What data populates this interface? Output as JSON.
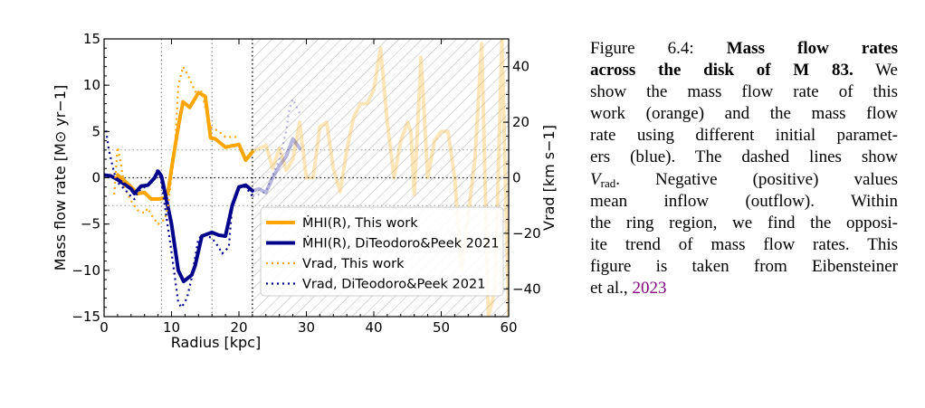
{
  "chart_data": {
    "type": "line",
    "xlabel": "Radius [kpc]",
    "ylabel": "Mass flow rate [M⊙ yr−1]",
    "ylabel_right": "Vrad [km s−1]",
    "xlim": [
      0,
      60
    ],
    "ylim": [
      -15,
      15
    ],
    "ylim_right": [
      -50,
      50
    ],
    "xticks": [
      "0",
      "10",
      "20",
      "30",
      "40",
      "50",
      "60"
    ],
    "yticks": [
      "−15",
      "−10",
      "−5",
      "0",
      "5",
      "10",
      "15"
    ],
    "yticks_right": [
      "−40",
      "−20",
      "0",
      "20",
      "40"
    ],
    "reference_lines": {
      "vertical_dotted_kpc": [
        8.5,
        16,
        22
      ],
      "horizontal_dotted_vrad": [
        -10,
        0,
        10
      ]
    },
    "hatched_region_kpc": [
      22,
      60
    ],
    "legend_placement": "lower-right",
    "colors": {
      "this_work": "#FFA500",
      "diteodoro": "#00008B"
    },
    "series": [
      {
        "name": "Ṁ_HI(R), This work",
        "axis": "left",
        "style": "solid",
        "color": "#FFA500",
        "x": [
          2,
          3,
          4,
          5,
          6,
          7,
          8,
          9,
          9.5,
          10,
          11,
          11.7,
          12.7,
          14,
          15,
          15.8,
          16.5,
          18,
          20,
          21,
          22,
          24,
          25,
          26,
          27,
          28,
          29,
          30,
          31,
          32,
          33,
          34,
          35,
          36,
          37,
          38,
          39,
          40,
          41,
          42,
          43,
          44,
          45,
          45.5,
          46,
          47,
          48,
          49,
          50,
          51,
          52,
          53,
          54,
          55,
          56,
          57,
          58,
          59,
          60
        ],
        "y": [
          0.3,
          -0.3,
          -1,
          -1.7,
          -1.6,
          -2.3,
          -2.3,
          -2.2,
          -1.5,
          1,
          5.5,
          8.2,
          7.6,
          9.2,
          8.8,
          4.3,
          4.2,
          3.3,
          3.6,
          1.9,
          2.8,
          3.5,
          1,
          3.2,
          0.8,
          2,
          6,
          0,
          0,
          5.5,
          6,
          1,
          -1.5,
          3,
          6.5,
          8,
          8,
          9.5,
          14,
          6,
          0,
          4,
          6,
          5,
          -1.8,
          13,
          0,
          4,
          5,
          5,
          0,
          -10,
          -4,
          2,
          14.5,
          -15,
          -12,
          15,
          -15
        ]
      },
      {
        "name": "Ṁ_HI(R), DiTeodoro&Peek 2021",
        "axis": "left",
        "style": "solid",
        "color": "#00008B",
        "x": [
          0,
          1,
          2,
          3,
          4,
          4.5,
          5.5,
          6.5,
          7.5,
          8,
          8.5,
          9,
          10,
          11,
          11.8,
          13,
          13.5,
          14.5,
          16,
          17,
          18,
          19,
          20,
          21,
          22,
          23,
          24,
          25,
          26,
          27,
          28,
          29
        ],
        "y": [
          0.3,
          0.2,
          -0.2,
          -0.7,
          -1.2,
          -1.7,
          -0.9,
          -0.8,
          0,
          0.7,
          0.2,
          -1.5,
          -5,
          -10,
          -11.2,
          -10.5,
          -9.5,
          -6.3,
          -5.9,
          -6.2,
          -6.3,
          -3,
          -1,
          -0.8,
          -1.4,
          -1.2,
          -1.6,
          0,
          1.3,
          2.3,
          4.2,
          3.2
        ]
      },
      {
        "name": "Vrad, This work",
        "axis": "right",
        "style": "dotted",
        "color": "#FFA500",
        "x": [
          1.5,
          2,
          2.5,
          3,
          4,
          5,
          6,
          6.5,
          7,
          8,
          9,
          9.5,
          10,
          10.5,
          11,
          11.7,
          12.5,
          13.5,
          14.5,
          15.2,
          15.8,
          17,
          18,
          20
        ],
        "y": [
          -6,
          11,
          5,
          -3.3,
          -8.3,
          -11.7,
          -12.7,
          -11,
          -13.3,
          -16.7,
          -15,
          -10,
          0,
          10,
          33,
          40,
          36.7,
          31,
          31,
          23.3,
          18.3,
          16.7,
          14.7,
          14.7
        ]
      },
      {
        "name": "Vrad, DiTeodoro&Peek 2021",
        "axis": "right",
        "style": "dotted",
        "color": "#00008B",
        "x": [
          0.3,
          0.7,
          1.5,
          2,
          3,
          4,
          4.5,
          5,
          6,
          7,
          8,
          8.5,
          9,
          10,
          11,
          11.5,
          12.3,
          13,
          14,
          15,
          16,
          17,
          17.5,
          18.5,
          19,
          20,
          21,
          22,
          23,
          24,
          26,
          27,
          27.5,
          28,
          29
        ],
        "y": [
          17,
          10,
          1.7,
          -1.7,
          -4,
          -6.7,
          -7.7,
          -5,
          -3.3,
          -1.7,
          3.3,
          -1.7,
          -10,
          -26.7,
          -45,
          -46.7,
          -43.3,
          -36,
          -21.7,
          -20.7,
          -21.7,
          -25,
          -27.3,
          -25,
          -10,
          -3.3,
          -3.3,
          -6.7,
          -6,
          -5,
          6.7,
          16.7,
          25,
          28.3,
          23.3
        ]
      }
    ],
    "legend": [
      {
        "label": "ṀHI(R), This work"
      },
      {
        "label": "ṀHI(R), DiTeodoro&Peek 2021"
      },
      {
        "label": "Vrad, This work"
      },
      {
        "label": "Vrad, DiTeodoro&Peek 2021"
      }
    ]
  },
  "caption": {
    "lines": [
      {
        "a": "Figure 6.4: ",
        "b": "Mass flow rates"
      },
      {
        "b": "across the disk of M 83.",
        "a": " We"
      },
      {
        "a": "show the mass flow rate of this"
      },
      {
        "a": "work (orange) and the mass flow"
      },
      {
        "a": "rate using different initial paramet-"
      },
      {
        "a": "ers (blue). The dashed lines show"
      },
      {
        "v": "V",
        "s": "rad",
        "a": ". Negative (positive) values"
      },
      {
        "a": "mean inflow (outflow). Within"
      },
      {
        "a": "the ring region, we find the opposi-"
      },
      {
        "a": "ite trend of mass flow rates. This"
      },
      {
        "a": "figure is taken from Eibensteiner"
      },
      {
        "a": "et al., ",
        "link": "2023"
      }
    ]
  }
}
